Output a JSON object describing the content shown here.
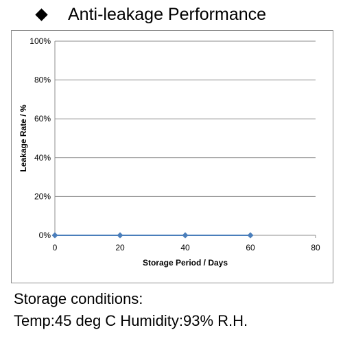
{
  "slide": {
    "title": "Anti-leakage Performance",
    "bullet_icon": "diamond-bullet-icon"
  },
  "chart_data": {
    "type": "line",
    "title": "",
    "xlabel": "Storage Period / Days",
    "ylabel": "Leakage Rate / %",
    "x": [
      0,
      20,
      40,
      60
    ],
    "series": [
      {
        "values": [
          0,
          0,
          0,
          0
        ],
        "color": "#4a7ebb"
      }
    ],
    "xlim": [
      0,
      80
    ],
    "ylim": [
      0,
      100
    ],
    "x_ticks": [
      0,
      20,
      40,
      60,
      80
    ],
    "x_tick_labels": [
      "0",
      "20",
      "40",
      "60",
      "80"
    ],
    "y_ticks": [
      0,
      20,
      40,
      60,
      80,
      100
    ],
    "y_tick_labels": [
      "0%",
      "20%",
      "40%",
      "60%",
      "80%",
      "100%"
    ],
    "grid": "horizontal",
    "legend": "none",
    "marker": "diamond"
  },
  "conditions": {
    "heading": "Storage conditions:",
    "detail": "Temp:45 deg C  Humidity:93% R.H."
  }
}
